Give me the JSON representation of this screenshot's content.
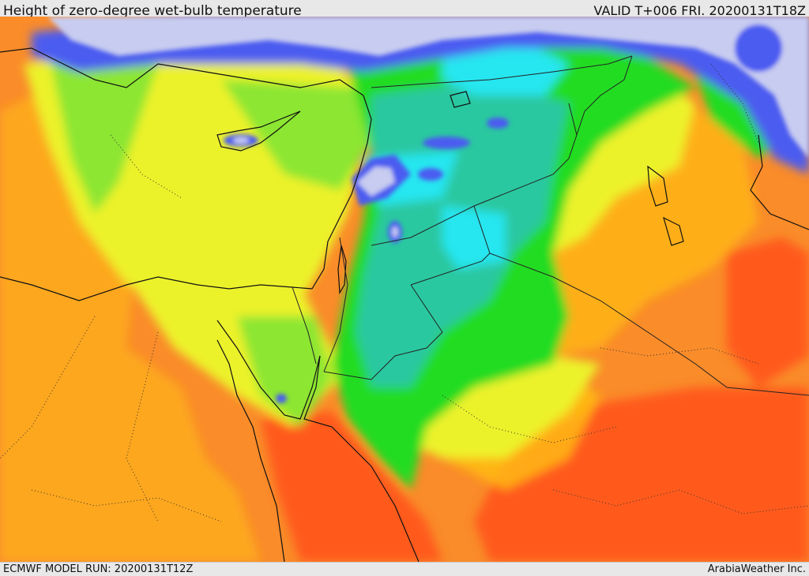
{
  "header": {
    "title": "Height of zero-degree wet-bulb temperature",
    "valid": "VALID T+006 FRI. 20200131T18Z"
  },
  "footer": {
    "model_run": "ECMWF MODEL RUN: 20200131T12Z",
    "credit": "ArabiaWeather Inc."
  },
  "map": {
    "field": "zero-degree wet-bulb height",
    "palette": {
      "low": "#c8ccf0",
      "blue": "#4b5cf0",
      "cyan": "#28e6f0",
      "teal": "#2cc8a0",
      "green": "#22dc22",
      "lightgreen": "#8ce632",
      "yellowgreen": "#d2f030",
      "yellow": "#ecf22c",
      "amber": "#ffbe14",
      "orange": "#fa8c2a",
      "redorange": "#ff5a1e",
      "sea_red": "#ff4a1a"
    },
    "colors": {
      "border": "#222222",
      "coast": "#111111",
      "admin": "#333333"
    }
  }
}
